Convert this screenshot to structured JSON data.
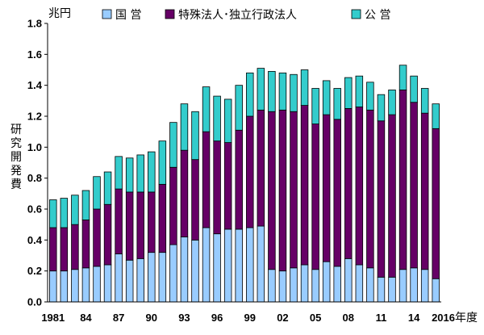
{
  "chart_data": {
    "type": "bar",
    "stacked": true,
    "yunit": "兆円",
    "ylabel": "研究開発費",
    "xsuffix": "年度",
    "ylim": [
      0,
      1.8
    ],
    "yticks": [
      "0.0",
      "0.2",
      "0.4",
      "0.6",
      "0.8",
      "1.0",
      "1.2",
      "1.4",
      "1.6",
      "1.8"
    ],
    "x": [
      1981,
      1982,
      1983,
      1984,
      1985,
      1986,
      1987,
      1988,
      1989,
      1990,
      1991,
      1992,
      1993,
      1994,
      1995,
      1996,
      1997,
      1998,
      1999,
      2000,
      2001,
      2002,
      2003,
      2004,
      2005,
      2006,
      2007,
      2008,
      2009,
      2010,
      2011,
      2012,
      2013,
      2014,
      2015,
      2016
    ],
    "xtick_labels": [
      {
        "index": 0,
        "label": "1981"
      },
      {
        "index": 3,
        "label": "84"
      },
      {
        "index": 6,
        "label": "87"
      },
      {
        "index": 9,
        "label": "90"
      },
      {
        "index": 12,
        "label": "93"
      },
      {
        "index": 15,
        "label": "96"
      },
      {
        "index": 18,
        "label": "99"
      },
      {
        "index": 21,
        "label": "02"
      },
      {
        "index": 24,
        "label": "05"
      },
      {
        "index": 27,
        "label": "08"
      },
      {
        "index": 30,
        "label": "11"
      },
      {
        "index": 33,
        "label": "14"
      },
      {
        "index": 35,
        "label": "2016"
      }
    ],
    "legend_position": "top",
    "series": [
      {
        "name": "国 営",
        "color": "#99ccff",
        "values": [
          0.2,
          0.2,
          0.21,
          0.22,
          0.23,
          0.24,
          0.31,
          0.27,
          0.28,
          0.32,
          0.32,
          0.37,
          0.42,
          0.4,
          0.48,
          0.44,
          0.47,
          0.47,
          0.48,
          0.49,
          0.21,
          0.2,
          0.22,
          0.24,
          0.21,
          0.26,
          0.23,
          0.28,
          0.24,
          0.22,
          0.16,
          0.16,
          0.21,
          0.22,
          0.21,
          0.15
        ]
      },
      {
        "name": "特殊法人･独立行政法人",
        "color": "#660066",
        "values": [
          0.28,
          0.28,
          0.29,
          0.31,
          0.37,
          0.39,
          0.42,
          0.44,
          0.43,
          0.39,
          0.44,
          0.5,
          0.56,
          0.52,
          0.62,
          0.6,
          0.56,
          0.64,
          0.72,
          0.75,
          1.02,
          1.04,
          1.01,
          1.03,
          0.94,
          0.95,
          0.95,
          0.97,
          1.02,
          1.02,
          1.01,
          1.05,
          1.16,
          1.07,
          1.01,
          0.97
        ]
      },
      {
        "name": "公 営",
        "color": "#33cccc",
        "values": [
          0.18,
          0.19,
          0.19,
          0.19,
          0.21,
          0.21,
          0.21,
          0.22,
          0.24,
          0.26,
          0.28,
          0.29,
          0.3,
          0.31,
          0.29,
          0.29,
          0.28,
          0.29,
          0.28,
          0.27,
          0.26,
          0.24,
          0.24,
          0.23,
          0.23,
          0.22,
          0.2,
          0.2,
          0.2,
          0.18,
          0.17,
          0.16,
          0.16,
          0.17,
          0.16,
          0.16
        ]
      }
    ]
  }
}
